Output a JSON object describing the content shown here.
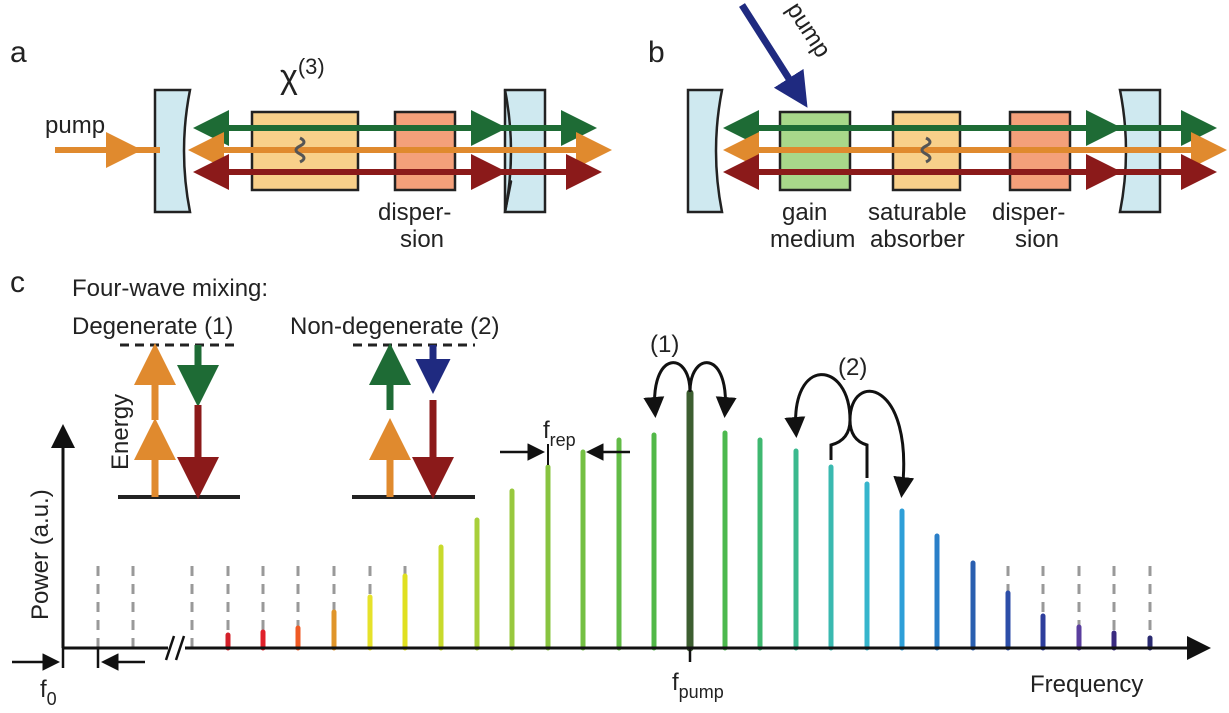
{
  "panel_a": {
    "label": "a",
    "chi": "χ",
    "chi_order": "(3)",
    "pump": "pump",
    "dispersion": [
      "disper-",
      "sion"
    ]
  },
  "panel_b": {
    "label": "b",
    "pump": "pump",
    "gain": [
      "gain",
      "medium"
    ],
    "absorber": [
      "saturable",
      "absorber"
    ],
    "dispersion": [
      "disper-",
      "sion"
    ]
  },
  "panel_c": {
    "label": "c",
    "fwm_title": "Four-wave mixing:",
    "degenerate": "Degenerate (1)",
    "nondegenerate": "Non-degenerate (2)",
    "energy": "Energy",
    "process_1": "(1)",
    "process_2": "(2)",
    "f_rep": {
      "f": "f",
      "sub": "rep"
    },
    "y_axis": "Power (a.u.)",
    "f_pump": {
      "f": "f",
      "sub": "pump"
    },
    "x_axis": "Frequency",
    "f_0": {
      "f": "f",
      "sub": "0"
    }
  }
}
